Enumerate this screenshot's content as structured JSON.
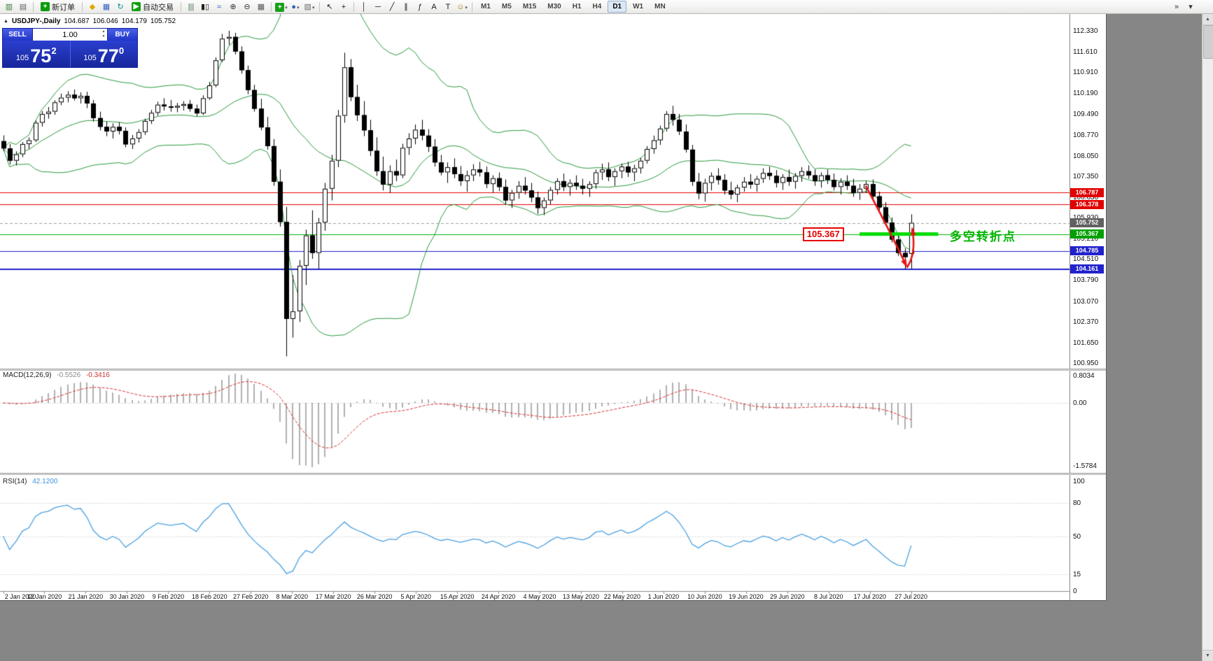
{
  "icons": {
    "one_click_toggle": "▲",
    "scroll_up": "▲",
    "scroll_down": "▼"
  },
  "toolbar": {
    "items": [
      {
        "t": "icon",
        "n": "new-chart-icon",
        "g": "▥",
        "c": "#3a7a3a"
      },
      {
        "t": "icon",
        "n": "chart-profiles-icon",
        "g": "▤",
        "c": "#5f5f5f"
      },
      {
        "t": "sep"
      },
      {
        "t": "btn",
        "n": "new-order-button",
        "g": "+",
        "gc": "#0c9c0c",
        "label": "新订单"
      },
      {
        "t": "sep"
      },
      {
        "t": "icon",
        "n": "metaeditor-icon",
        "g": "◆",
        "c": "#e0a800"
      },
      {
        "t": "icon",
        "n": "market-watch-icon",
        "g": "▦",
        "c": "#2f5fc0"
      },
      {
        "t": "icon",
        "n": "refresh-icon",
        "g": "↻",
        "c": "#0c8f8f"
      },
      {
        "t": "btn",
        "n": "autotrading-button",
        "g": "▶",
        "gc": "#12a012",
        "label": "自动交易"
      },
      {
        "t": "sep"
      },
      {
        "t": "icon",
        "n": "bar-chart-mode-icon",
        "g": "|||",
        "c": "#33663c"
      },
      {
        "t": "icon",
        "n": "candlestick-mode-icon",
        "g": "▮▯",
        "c": "#222222"
      },
      {
        "t": "icon",
        "n": "line-chart-mode-icon",
        "g": "≈",
        "c": "#2f5fc0"
      },
      {
        "t": "icon",
        "n": "zoom-in-icon",
        "g": "⊕",
        "c": "#333333"
      },
      {
        "t": "icon",
        "n": "zoom-out-icon",
        "g": "⊖",
        "c": "#333333"
      },
      {
        "t": "icon",
        "n": "tile-windows-icon",
        "g": "▦",
        "c": "#555555"
      },
      {
        "t": "sep"
      },
      {
        "t": "icondd",
        "n": "indicators-menu-icon",
        "g": "+",
        "c": "#ffffff",
        "bg": "#18a018"
      },
      {
        "t": "icondd",
        "n": "periods-menu-icon",
        "g": "●",
        "c": "#2f5fc0"
      },
      {
        "t": "icondd",
        "n": "templates-menu-icon",
        "g": "▧",
        "c": "#6f6f6f"
      },
      {
        "t": "sep"
      },
      {
        "t": "icon",
        "n": "cursor-icon",
        "g": "↖",
        "c": "#1a1a1a"
      },
      {
        "t": "icon",
        "n": "crosshair-icon",
        "g": "+",
        "c": "#1a1a1a"
      },
      {
        "t": "sep"
      },
      {
        "t": "icon",
        "n": "vertical-line-icon",
        "g": "│",
        "c": "#1a1a1a"
      },
      {
        "t": "icon",
        "n": "horizontal-line-icon",
        "g": "─",
        "c": "#1a1a1a"
      },
      {
        "t": "icon",
        "n": "trendline-icon",
        "g": "╱",
        "c": "#1a1a1a"
      },
      {
        "t": "icon",
        "n": "equidistant-channel-icon",
        "g": "∥",
        "c": "#1a1a1a"
      },
      {
        "t": "icon",
        "n": "fibonacci-icon",
        "g": "ƒ",
        "c": "#1a1a1a"
      },
      {
        "t": "icon",
        "n": "text-icon",
        "g": "A",
        "c": "#1a1a1a"
      },
      {
        "t": "icon",
        "n": "label-icon",
        "g": "T",
        "c": "#1a1a1a"
      },
      {
        "t": "icondd",
        "n": "arrow-objects-icon",
        "g": "☺",
        "c": "#a97f00"
      },
      {
        "t": "sep"
      }
    ],
    "timeframes": [
      "M1",
      "M5",
      "M15",
      "M30",
      "H1",
      "H4",
      "D1",
      "W1",
      "MN"
    ],
    "active_timeframe": "D1",
    "right_items": [
      {
        "n": "toolbar-overflow-icon",
        "g": "»"
      },
      {
        "n": "toolbar-options-icon",
        "g": "▾"
      }
    ]
  },
  "chart": {
    "symbol_line": {
      "symbol": "USDJPY-,Daily",
      "o": "104.687",
      "h": "106.046",
      "l": "104.179",
      "c": "105.752"
    },
    "one_click": {
      "sell_label": "SELL",
      "buy_label": "BUY",
      "volume": "1.00",
      "bid_prefix": "105",
      "bid_big": "75",
      "bid_sup": "2",
      "ask_prefix": "105",
      "ask_big": "77",
      "ask_sup": "0"
    }
  },
  "chart_data": {
    "type": "candlestick",
    "symbol": "USDJPY",
    "period": "Daily",
    "current_ohlc": {
      "open": 104.687,
      "high": 106.046,
      "low": 104.179,
      "close": 105.752
    },
    "price_axis": {
      "top_price": 112.33,
      "bottom_price": 100.95,
      "ticks": [
        112.33,
        111.61,
        110.91,
        110.19,
        109.49,
        108.77,
        108.05,
        107.35,
        106.63,
        105.93,
        105.21,
        104.51,
        103.79,
        103.07,
        102.37,
        101.65,
        100.95
      ]
    },
    "date_labels": [
      "2 Jan 2020",
      "12 Jan 2020",
      "21 Jan 2020",
      "30 Jan 2020",
      "9 Feb 2020",
      "18 Feb 2020",
      "27 Feb 2020",
      "8 Mar 2020",
      "17 Mar 2020",
      "26 Mar 2020",
      "5 Apr 2020",
      "15 Apr 2020",
      "24 Apr 2020",
      "4 May 2020",
      "13 May 2020",
      "22 May 2020",
      "1 Jun 2020",
      "10 Jun 2020",
      "19 Jun 2020",
      "29 Jun 2020",
      "8 Jul 2020",
      "17 Jul 2020",
      "27 Jul 2020"
    ],
    "ohlc": [
      [
        108.55,
        108.75,
        108.2,
        108.3
      ],
      [
        108.3,
        108.45,
        107.75,
        107.88
      ],
      [
        107.88,
        108.2,
        107.72,
        108.1
      ],
      [
        108.1,
        108.52,
        108.0,
        108.45
      ],
      [
        108.45,
        108.68,
        108.28,
        108.58
      ],
      [
        108.58,
        109.25,
        108.52,
        109.18
      ],
      [
        109.18,
        109.58,
        109.05,
        109.48
      ],
      [
        109.48,
        109.72,
        109.32,
        109.56
      ],
      [
        109.56,
        109.95,
        109.45,
        109.88
      ],
      [
        109.88,
        110.18,
        109.78,
        110.04
      ],
      [
        110.04,
        110.26,
        109.88,
        110.14
      ],
      [
        110.14,
        110.32,
        109.94,
        110.02
      ],
      [
        110.02,
        110.22,
        109.84,
        110.1
      ],
      [
        110.1,
        110.24,
        109.68,
        109.84
      ],
      [
        109.84,
        109.96,
        109.22,
        109.34
      ],
      [
        109.34,
        109.56,
        108.92,
        109.04
      ],
      [
        109.04,
        109.22,
        108.72,
        108.88
      ],
      [
        108.88,
        109.16,
        108.64,
        109.04
      ],
      [
        109.04,
        109.2,
        108.78,
        108.9
      ],
      [
        108.9,
        109.02,
        108.34,
        108.44
      ],
      [
        108.44,
        108.76,
        108.28,
        108.64
      ],
      [
        108.64,
        108.96,
        108.5,
        108.86
      ],
      [
        108.86,
        109.32,
        108.76,
        109.24
      ],
      [
        109.24,
        109.62,
        109.14,
        109.52
      ],
      [
        109.52,
        109.9,
        109.42,
        109.8
      ],
      [
        109.8,
        110.02,
        109.6,
        109.74
      ],
      [
        109.74,
        109.96,
        109.56,
        109.7
      ],
      [
        109.7,
        109.86,
        109.54,
        109.76
      ],
      [
        109.76,
        109.92,
        109.6,
        109.82
      ],
      [
        109.82,
        109.96,
        109.56,
        109.66
      ],
      [
        109.66,
        109.8,
        109.4,
        109.5
      ],
      [
        109.5,
        110.12,
        109.44,
        110.02
      ],
      [
        110.02,
        110.58,
        109.96,
        110.46
      ],
      [
        110.46,
        111.42,
        110.4,
        111.32
      ],
      [
        111.32,
        112.22,
        111.26,
        112.06
      ],
      [
        112.06,
        112.33,
        111.84,
        112.12
      ],
      [
        112.12,
        112.26,
        111.52,
        111.62
      ],
      [
        111.62,
        111.8,
        110.86,
        110.98
      ],
      [
        110.98,
        111.14,
        110.16,
        110.3
      ],
      [
        110.3,
        110.48,
        109.56,
        109.66
      ],
      [
        109.66,
        110.0,
        108.92,
        109.02
      ],
      [
        109.02,
        109.38,
        108.26,
        108.38
      ],
      [
        108.38,
        108.62,
        107.02,
        107.16
      ],
      [
        107.16,
        107.58,
        105.62,
        105.78
      ],
      [
        105.78,
        106.3,
        101.18,
        102.46
      ],
      [
        102.46,
        103.96,
        101.82,
        102.72
      ],
      [
        102.72,
        104.48,
        102.36,
        104.28
      ],
      [
        104.28,
        105.52,
        103.62,
        105.32
      ],
      [
        105.32,
        106.18,
        104.52,
        104.72
      ],
      [
        104.72,
        105.92,
        104.18,
        105.76
      ],
      [
        105.76,
        107.12,
        105.48,
        106.92
      ],
      [
        106.92,
        108.08,
        106.52,
        107.88
      ],
      [
        107.88,
        109.62,
        107.66,
        109.42
      ],
      [
        109.42,
        111.58,
        109.18,
        111.08
      ],
      [
        111.08,
        111.36,
        109.92,
        110.06
      ],
      [
        110.06,
        110.48,
        109.24,
        109.44
      ],
      [
        109.44,
        109.92,
        108.72,
        108.92
      ],
      [
        108.92,
        109.28,
        108.04,
        108.22
      ],
      [
        108.22,
        108.68,
        107.36,
        107.52
      ],
      [
        107.52,
        108.02,
        106.86,
        107.06
      ],
      [
        107.06,
        107.72,
        106.78,
        107.52
      ],
      [
        107.52,
        107.92,
        107.18,
        107.38
      ],
      [
        107.38,
        108.46,
        107.28,
        108.32
      ],
      [
        108.32,
        108.82,
        108.08,
        108.64
      ],
      [
        108.64,
        109.12,
        108.44,
        108.94
      ],
      [
        108.94,
        109.28,
        108.58,
        108.74
      ],
      [
        108.74,
        108.96,
        108.18,
        108.36
      ],
      [
        108.36,
        108.62,
        107.68,
        107.82
      ],
      [
        107.82,
        108.08,
        107.38,
        107.48
      ],
      [
        107.48,
        107.82,
        107.12,
        107.66
      ],
      [
        107.66,
        107.96,
        107.28,
        107.42
      ],
      [
        107.42,
        107.7,
        107.02,
        107.18
      ],
      [
        107.18,
        107.54,
        106.82,
        107.38
      ],
      [
        107.38,
        107.76,
        107.18,
        107.58
      ],
      [
        107.58,
        107.84,
        107.34,
        107.48
      ],
      [
        107.48,
        107.68,
        106.94,
        107.08
      ],
      [
        107.08,
        107.38,
        106.78,
        107.28
      ],
      [
        107.28,
        107.48,
        106.84,
        106.98
      ],
      [
        106.98,
        107.24,
        106.38,
        106.52
      ],
      [
        106.52,
        106.88,
        106.26,
        106.78
      ],
      [
        106.78,
        107.18,
        106.58,
        107.02
      ],
      [
        107.02,
        107.32,
        106.72,
        106.86
      ],
      [
        106.86,
        107.12,
        106.46,
        106.62
      ],
      [
        106.62,
        106.82,
        106.06,
        106.26
      ],
      [
        106.26,
        106.62,
        106.02,
        106.52
      ],
      [
        106.52,
        106.98,
        106.38,
        106.88
      ],
      [
        106.88,
        107.28,
        106.72,
        107.18
      ],
      [
        107.18,
        107.44,
        106.84,
        106.98
      ],
      [
        106.98,
        107.24,
        106.68,
        107.12
      ],
      [
        107.12,
        107.38,
        106.88,
        107.02
      ],
      [
        107.02,
        107.26,
        106.72,
        106.92
      ],
      [
        106.92,
        107.18,
        106.64,
        107.08
      ],
      [
        107.08,
        107.58,
        106.92,
        107.48
      ],
      [
        107.48,
        107.78,
        107.22,
        107.58
      ],
      [
        107.58,
        107.82,
        107.18,
        107.32
      ],
      [
        107.32,
        107.62,
        107.02,
        107.52
      ],
      [
        107.52,
        107.78,
        107.28,
        107.68
      ],
      [
        107.68,
        107.84,
        107.32,
        107.48
      ],
      [
        107.48,
        107.74,
        107.18,
        107.62
      ],
      [
        107.62,
        107.98,
        107.44,
        107.88
      ],
      [
        107.88,
        108.38,
        107.78,
        108.28
      ],
      [
        108.28,
        108.74,
        108.12,
        108.58
      ],
      [
        108.58,
        109.08,
        108.42,
        108.98
      ],
      [
        108.98,
        109.58,
        108.88,
        109.48
      ],
      [
        109.48,
        109.76,
        109.08,
        109.28
      ],
      [
        109.28,
        109.48,
        108.76,
        108.88
      ],
      [
        108.88,
        109.12,
        108.16,
        108.26
      ],
      [
        108.26,
        108.42,
        107.02,
        107.16
      ],
      [
        107.16,
        107.46,
        106.56,
        106.76
      ],
      [
        106.76,
        107.26,
        106.48,
        107.12
      ],
      [
        107.12,
        107.48,
        106.86,
        107.36
      ],
      [
        107.36,
        107.62,
        107.06,
        107.22
      ],
      [
        107.22,
        107.42,
        106.72,
        106.86
      ],
      [
        106.86,
        107.16,
        106.56,
        106.72
      ],
      [
        106.72,
        107.06,
        106.46,
        106.96
      ],
      [
        106.96,
        107.32,
        106.82,
        107.16
      ],
      [
        107.16,
        107.42,
        106.92,
        107.06
      ],
      [
        107.06,
        107.36,
        106.82,
        107.26
      ],
      [
        107.26,
        107.62,
        107.12,
        107.46
      ],
      [
        107.46,
        107.68,
        107.22,
        107.36
      ],
      [
        107.36,
        107.56,
        106.96,
        107.12
      ],
      [
        107.12,
        107.42,
        106.88,
        107.32
      ],
      [
        107.32,
        107.58,
        107.02,
        107.16
      ],
      [
        107.16,
        107.46,
        106.92,
        107.36
      ],
      [
        107.36,
        107.66,
        107.16,
        107.52
      ],
      [
        107.52,
        107.72,
        107.26,
        107.38
      ],
      [
        107.38,
        107.58,
        107.02,
        107.18
      ],
      [
        107.18,
        107.48,
        106.96,
        107.38
      ],
      [
        107.38,
        107.58,
        107.08,
        107.22
      ],
      [
        107.22,
        107.44,
        106.86,
        106.98
      ],
      [
        106.98,
        107.28,
        106.72,
        107.16
      ],
      [
        107.16,
        107.38,
        106.88,
        107.02
      ],
      [
        107.02,
        107.26,
        106.64,
        106.78
      ],
      [
        106.78,
        107.08,
        106.54,
        106.92
      ],
      [
        106.92,
        107.18,
        106.78,
        107.08
      ],
      [
        107.08,
        107.24,
        106.56,
        106.66
      ],
      [
        106.66,
        106.82,
        106.18,
        106.28
      ],
      [
        106.28,
        106.46,
        105.66,
        105.76
      ],
      [
        105.76,
        105.94,
        105.08,
        105.18
      ],
      [
        105.18,
        105.38,
        104.62,
        104.72
      ],
      [
        104.72,
        104.88,
        104.16,
        104.58
      ],
      [
        104.687,
        106.046,
        104.179,
        105.752
      ]
    ],
    "bollinger": {
      "period": 20,
      "deviation": 2,
      "color": "#2a9a3c"
    },
    "hlines": [
      {
        "price": 106.787,
        "color": "#e60000",
        "width": 1
      },
      {
        "price": 106.378,
        "color": "#e60000",
        "width": 1
      },
      {
        "price": 105.752,
        "color": "#a0a0a0",
        "width": 1,
        "dash": true
      },
      {
        "price": 105.367,
        "color": "#00b400",
        "width": 1
      },
      {
        "price": 104.785,
        "color": "#2020cc",
        "width": 1
      },
      {
        "price": 104.161,
        "color": "#2020cc",
        "width": 2
      }
    ],
    "price_tags": [
      {
        "price": 106.787,
        "bg": "#e00000"
      },
      {
        "price": 106.378,
        "bg": "#e00000"
      },
      {
        "price": 105.752,
        "bg": "#606060"
      },
      {
        "price": 105.367,
        "bg": "#00a000"
      },
      {
        "price": 104.785,
        "bg": "#2222cc"
      },
      {
        "price": 104.161,
        "bg": "#2222cc"
      }
    ],
    "thick_segment": {
      "price": 105.367,
      "from_bar": 133,
      "to_bar": 145.2,
      "color": "#00dc00",
      "width": 5
    },
    "macd": {
      "name": "MACD(12,26,9)",
      "main": "-0.5526",
      "signal": "-0.3416",
      "params": {
        "fast": 12,
        "slow": 26,
        "signal": 9
      },
      "ticks": {
        "top": "0.8034",
        "zero": "0.00",
        "bottom": "-1.5784"
      },
      "hist_color": "#b0b0b0",
      "signal_color": "#d93030"
    },
    "rsi": {
      "name": "RSI(14)",
      "value": "42.1200",
      "period": 14,
      "ticks": [
        100,
        80,
        50,
        15,
        0
      ],
      "levels": [
        80,
        50,
        15
      ],
      "color": "#4aa0e0"
    },
    "annotations": {
      "callout_text": "105.367",
      "callout_right_bar": 132.2,
      "level_price": 105.367,
      "note_text": "多空转折点",
      "note_bar": 147,
      "note_color": "#00b400",
      "arrow_color": "#e81414",
      "arrow_down": {
        "from": [
          134,
          107.0
        ],
        "ctrl": [
          138.2,
          105.25
        ],
        "to": [
          140.2,
          104.3
        ]
      },
      "arrow_up": {
        "from": [
          140.4,
          104.24
        ],
        "ctrl": [
          141.8,
          104.7
        ],
        "to": [
          141.2,
          105.52
        ]
      }
    }
  }
}
